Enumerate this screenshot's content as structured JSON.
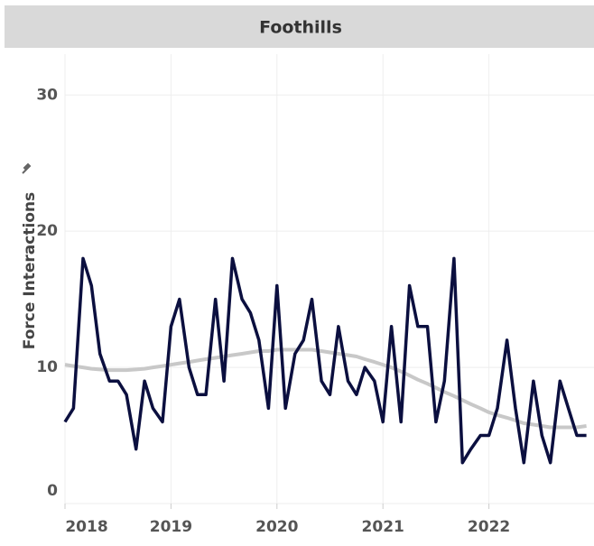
{
  "chart_data": {
    "type": "line",
    "title": "Foothills",
    "y_label": "Force Interactions",
    "x": [
      2018.0,
      2018.08,
      2018.17,
      2018.25,
      2018.33,
      2018.42,
      2018.5,
      2018.58,
      2018.67,
      2018.75,
      2018.83,
      2018.92,
      2019.0,
      2019.08,
      2019.17,
      2019.25,
      2019.33,
      2019.42,
      2019.5,
      2019.58,
      2019.67,
      2019.75,
      2019.83,
      2019.92,
      2020.0,
      2020.08,
      2020.17,
      2020.25,
      2020.33,
      2020.42,
      2020.5,
      2020.58,
      2020.67,
      2020.75,
      2020.83,
      2020.92,
      2021.0,
      2021.08,
      2021.17,
      2021.25,
      2021.33,
      2021.42,
      2021.5,
      2021.58,
      2021.67,
      2021.75,
      2021.83,
      2021.92,
      2022.0,
      2022.08,
      2022.17,
      2022.25,
      2022.33,
      2022.42,
      2022.5,
      2022.58,
      2022.67,
      2022.75,
      2022.83,
      2022.92
    ],
    "series": [
      {
        "name": "Trend",
        "color": "#c8c8c8",
        "width": 4,
        "values": [
          10.2,
          10.1,
          10.0,
          9.9,
          9.85,
          9.8,
          9.8,
          9.8,
          9.85,
          9.9,
          10.0,
          10.1,
          10.2,
          10.3,
          10.4,
          10.5,
          10.6,
          10.7,
          10.8,
          10.9,
          11.0,
          11.1,
          11.2,
          11.2,
          11.3,
          11.3,
          11.3,
          11.3,
          11.3,
          11.2,
          11.1,
          11.0,
          10.9,
          10.8,
          10.6,
          10.4,
          10.2,
          10.0,
          9.7,
          9.4,
          9.1,
          8.8,
          8.5,
          8.2,
          7.9,
          7.6,
          7.3,
          7.0,
          6.7,
          6.5,
          6.3,
          6.1,
          5.9,
          5.8,
          5.7,
          5.6,
          5.6,
          5.6,
          5.6,
          5.7
        ]
      },
      {
        "name": "Force Interactions",
        "color": "#0b0f3f",
        "width": 3.5,
        "values": [
          6,
          7,
          18,
          16,
          11,
          9,
          9,
          8,
          4,
          9,
          7,
          6,
          13,
          15,
          10,
          8,
          8,
          15,
          9,
          18,
          15,
          14,
          12,
          7,
          16,
          7,
          11,
          12,
          15,
          9,
          8,
          13,
          9,
          8,
          10,
          9,
          6,
          13,
          6,
          16,
          13,
          13,
          6,
          9,
          18,
          3,
          4,
          5,
          5,
          7,
          12,
          7,
          3,
          9,
          5,
          3,
          9,
          7,
          5,
          5
        ]
      }
    ],
    "xlim": [
      2018,
      2023
    ],
    "xticks": [
      2018,
      2019,
      2020,
      2021,
      2022
    ],
    "ylim": [
      0,
      33
    ],
    "yticks": [
      0,
      10,
      20,
      30
    ],
    "grid": true
  }
}
